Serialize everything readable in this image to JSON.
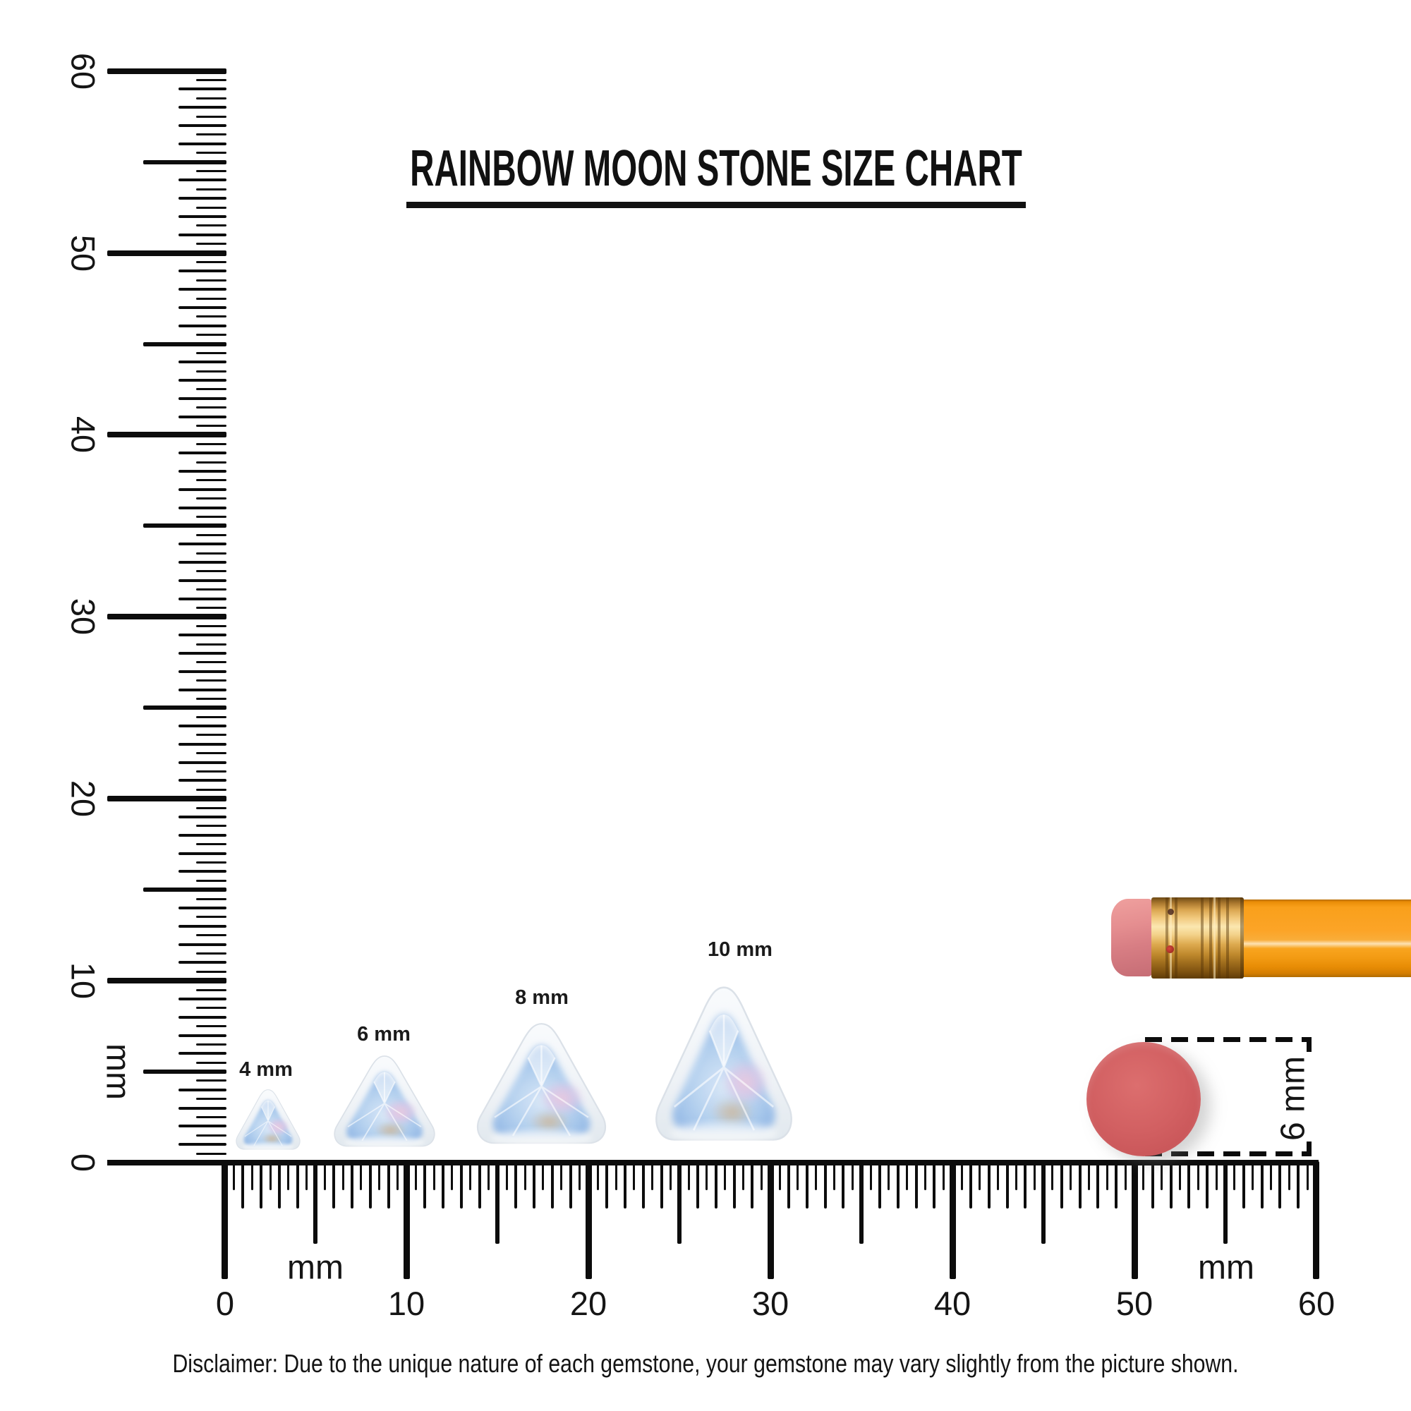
{
  "title": "RAINBOW MOON STONE SIZE CHART",
  "disclaimer": "Disclaimer: Due to the unique nature of each gemstone, your gemstone may vary slightly from the picture shown.",
  "rulers": {
    "unit": "mm",
    "vertical": {
      "tick_labels": [
        "0",
        "10",
        "20",
        "30",
        "40",
        "50",
        "60"
      ],
      "unit_label": "mm",
      "range_mm": [
        0,
        60
      ]
    },
    "horizontal": {
      "tick_labels": [
        "0",
        "10",
        "20",
        "30",
        "40",
        "50",
        "60"
      ],
      "unit_label_left": "mm",
      "unit_label_right": "mm",
      "range_mm": [
        0,
        60
      ]
    }
  },
  "gems": [
    {
      "label": "4 mm",
      "size_mm": 4
    },
    {
      "label": "6 mm",
      "size_mm": 6
    },
    {
      "label": "8 mm",
      "size_mm": 8
    },
    {
      "label": "10 mm",
      "size_mm": 10
    }
  ],
  "eraser_reference": {
    "label": "6 mm",
    "diameter_mm": 6
  },
  "colors": {
    "ink": "#0c0c0c",
    "accent_red_circle": "#d05c5e",
    "pencil_orange": "#f9a11d",
    "ferrule_gold": "#e8bc6a",
    "eraser_pink": "#df868a",
    "gem_blue": "#a9c9ec"
  },
  "chart_data": {
    "type": "size_chart",
    "title": "RAINBOW MOON STONE SIZE CHART",
    "unit": "mm",
    "ruler_range_mm": [
      0,
      60
    ],
    "items": [
      {
        "name": "rainbow moonstone trillion",
        "size_mm": 4,
        "label": "4 mm"
      },
      {
        "name": "rainbow moonstone trillion",
        "size_mm": 6,
        "label": "6 mm"
      },
      {
        "name": "rainbow moonstone trillion",
        "size_mm": 8,
        "label": "8 mm"
      },
      {
        "name": "rainbow moonstone trillion",
        "size_mm": 10,
        "label": "10 mm"
      }
    ],
    "reference_objects": [
      {
        "name": "pencil",
        "detail": "orange pencil with pink eraser and gold ferrule"
      },
      {
        "name": "pencil eraser top view",
        "diameter_mm": 6,
        "label": "6 mm"
      }
    ]
  }
}
